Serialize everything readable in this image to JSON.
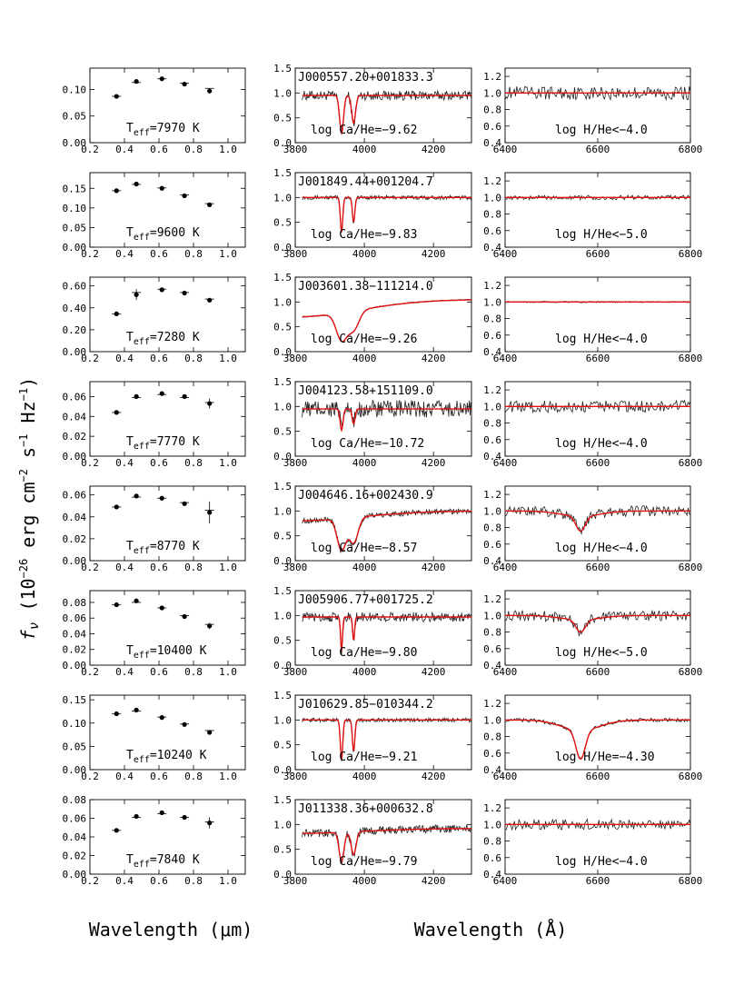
{
  "figure": {
    "ylabel_f": "f",
    "ylabel_nu": "ν",
    "ylabel_rest": " (10",
    "ylabel_exp1": "−26",
    "ylabel_unit1": " erg cm",
    "ylabel_exp2": "−2",
    "ylabel_unit2": " s",
    "ylabel_exp3": "−1",
    "ylabel_unit3": " Hz",
    "ylabel_exp4": "−1",
    "ylabel_close": ")",
    "xlabel_left": "Wavelength (μm)",
    "xlabel_right": "Wavelength (Å)"
  },
  "axes": {
    "photometry": {
      "xlim": [
        0.2,
        1.1
      ],
      "xticks": [
        "0.2",
        "0.4",
        "0.6",
        "0.8",
        "1.0"
      ],
      "xtick_values": [
        0.2,
        0.4,
        0.6,
        0.8,
        1.0
      ]
    },
    "calcium": {
      "xlim": [
        3800,
        4310
      ],
      "xticks": [
        "3800",
        "4000",
        "4200"
      ],
      "xtick_values": [
        3800,
        4000,
        4200
      ],
      "ylim": [
        0.0,
        1.5
      ],
      "yticks": [
        "0.0",
        "0.5",
        "1.0",
        "1.5"
      ],
      "ytick_values": [
        0.0,
        0.5,
        1.0,
        1.5
      ]
    },
    "halpha": {
      "xlim": [
        6400,
        6800
      ],
      "xticks": [
        "6400",
        "6600",
        "6800"
      ],
      "xtick_values": [
        6400,
        6600,
        6800
      ],
      "ylim": [
        0.4,
        1.3
      ],
      "yticks": [
        "0.4",
        "0.6",
        "0.8",
        "1.0",
        "1.2"
      ],
      "ytick_values": [
        0.4,
        0.6,
        0.8,
        1.0,
        1.2
      ]
    }
  },
  "chart_data": [
    {
      "type": "scatter",
      "name": "J000557.20+001833.3",
      "teff_label": "=7970 K",
      "phot": {
        "ylim": [
          0.0,
          0.14
        ],
        "yticks": [
          "0.00",
          "0.05",
          "0.10"
        ],
        "ytick_values": [
          0.0,
          0.05,
          0.1
        ],
        "x": [
          0.354,
          0.469,
          0.617,
          0.748,
          0.893
        ],
        "y": [
          0.087,
          0.115,
          0.12,
          0.11,
          0.097
        ],
        "err": [
          0.003,
          0.002,
          0.002,
          0.003,
          0.005
        ],
        "model": [
          0.087,
          0.113,
          0.12,
          0.112,
          0.102
        ]
      },
      "ca": {
        "label": "log Ca/He=−9.62",
        "continuum": 0.95,
        "depth1": 0.8,
        "depth2": 0.65,
        "width": 8,
        "noise": 0.12,
        "cont_shape": 0.0
      },
      "h": {
        "label": "log H/He<−4.0",
        "depth": 0.0,
        "noise": 0.09
      }
    },
    {
      "type": "scatter",
      "name": "J001849.44+001204.7",
      "teff_label": "=9600 K",
      "phot": {
        "ylim": [
          0.0,
          0.19
        ],
        "yticks": [
          "0.00",
          "0.05",
          "0.10",
          "0.15"
        ],
        "ytick_values": [
          0.0,
          0.05,
          0.1,
          0.15
        ],
        "x": [
          0.354,
          0.469,
          0.617,
          0.748,
          0.893
        ],
        "y": [
          0.144,
          0.161,
          0.15,
          0.131,
          0.108
        ],
        "err": [
          0.004,
          0.003,
          0.003,
          0.003,
          0.004
        ],
        "model": [
          0.144,
          0.16,
          0.151,
          0.133,
          0.111
        ]
      },
      "ca": {
        "label": "log Ca/He=−9.83",
        "continuum": 1.0,
        "depth1": 0.7,
        "depth2": 0.55,
        "width": 5,
        "noise": 0.05,
        "cont_shape": 0.0
      },
      "h": {
        "label": "log H/He<−5.0",
        "depth": 0.0,
        "noise": 0.03
      }
    },
    {
      "type": "scatter",
      "name": "J003601.38−111214.0",
      "teff_label": "=7280 K",
      "phot": {
        "ylim": [
          0.0,
          0.68
        ],
        "yticks": [
          "0.00",
          "0.20",
          "0.40",
          "0.60"
        ],
        "ytick_values": [
          0.0,
          0.2,
          0.4,
          0.6
        ],
        "x": [
          0.354,
          0.469,
          0.617,
          0.748,
          0.893
        ],
        "y": [
          0.345,
          0.52,
          0.565,
          0.535,
          0.47
        ],
        "err": [
          0.01,
          0.05,
          0.02,
          0.015,
          0.02
        ],
        "model": [
          0.345,
          0.54,
          0.57,
          0.54,
          0.48
        ]
      },
      "ca": {
        "label": "log Ca/He=−9.26",
        "continuum": 1.05,
        "depth1": 0.7,
        "depth2": 0.5,
        "width": 22,
        "noise": 0.015,
        "cont_shape": 0.35
      },
      "h": {
        "label": "log H/He<−4.0",
        "depth": 0.0,
        "noise": 0.01
      }
    },
    {
      "type": "scatter",
      "name": "J004123.58+151109.0",
      "teff_label": "=7770 K",
      "phot": {
        "ylim": [
          0.0,
          0.075
        ],
        "yticks": [
          "0.00",
          "0.02",
          "0.04",
          "0.06"
        ],
        "ytick_values": [
          0.0,
          0.02,
          0.04,
          0.06
        ],
        "x": [
          0.354,
          0.469,
          0.617,
          0.748,
          0.893
        ],
        "y": [
          0.044,
          0.06,
          0.063,
          0.06,
          0.053
        ],
        "err": [
          0.002,
          0.001,
          0.0015,
          0.002,
          0.005
        ],
        "model": [
          0.044,
          0.059,
          0.062,
          0.059,
          0.054
        ]
      },
      "ca": {
        "label": "log Ca/He=−10.72",
        "continuum": 0.95,
        "depth1": 0.45,
        "depth2": 0.35,
        "width": 6,
        "noise": 0.22,
        "cont_shape": 0.0
      },
      "h": {
        "label": "log H/He<−4.0",
        "depth": 0.0,
        "noise": 0.08
      }
    },
    {
      "type": "scatter",
      "name": "J004646.16+002430.9",
      "teff_label": "=8770 K",
      "phot": {
        "ylim": [
          0.0,
          0.068
        ],
        "yticks": [
          "0.00",
          "0.02",
          "0.04",
          "0.06"
        ],
        "ytick_values": [
          0.0,
          0.02,
          0.04,
          0.06
        ],
        "x": [
          0.354,
          0.469,
          0.617,
          0.748,
          0.893
        ],
        "y": [
          0.049,
          0.059,
          0.057,
          0.052,
          0.044
        ],
        "err": [
          0.0015,
          0.001,
          0.0015,
          0.002,
          0.01
        ],
        "model": [
          0.049,
          0.058,
          0.057,
          0.053,
          0.046
        ]
      },
      "ca": {
        "label": "log Ca/He=−8.57",
        "continuum": 1.0,
        "depth1": 0.75,
        "depth2": 0.65,
        "width": 18,
        "noise": 0.07,
        "cont_shape": 0.2
      },
      "h": {
        "label": "log H/He<−4.0",
        "depth": 0.18,
        "noise": 0.07
      }
    },
    {
      "type": "scatter",
      "name": "J005906.77+001725.2",
      "teff_label": "=10400 K",
      "phot": {
        "ylim": [
          0.0,
          0.095
        ],
        "yticks": [
          "0.00",
          "0.02",
          "0.04",
          "0.06",
          "0.08"
        ],
        "ytick_values": [
          0.0,
          0.02,
          0.04,
          0.06,
          0.08
        ],
        "x": [
          0.354,
          0.469,
          0.617,
          0.748,
          0.893
        ],
        "y": [
          0.077,
          0.082,
          0.073,
          0.062,
          0.05
        ],
        "err": [
          0.002,
          0.003,
          0.002,
          0.002,
          0.004
        ],
        "model": [
          0.077,
          0.08,
          0.073,
          0.063,
          0.052
        ]
      },
      "ca": {
        "label": "log Ca/He=−9.80",
        "continuum": 0.97,
        "depth1": 0.7,
        "depth2": 0.55,
        "width": 4,
        "noise": 0.12,
        "cont_shape": 0.0
      },
      "h": {
        "label": "log H/He<−5.0",
        "depth": 0.15,
        "noise": 0.07
      }
    },
    {
      "type": "scatter",
      "name": "J010629.85−010344.2",
      "teff_label": "=10240 K",
      "phot": {
        "ylim": [
          0.0,
          0.16
        ],
        "yticks": [
          "0.00",
          "0.05",
          "0.10",
          "0.15"
        ],
        "ytick_values": [
          0.0,
          0.05,
          0.1,
          0.15
        ],
        "x": [
          0.354,
          0.469,
          0.617,
          0.748,
          0.893
        ],
        "y": [
          0.12,
          0.128,
          0.112,
          0.097,
          0.08
        ],
        "err": [
          0.004,
          0.004,
          0.003,
          0.003,
          0.005
        ],
        "model": [
          0.12,
          0.126,
          0.113,
          0.098,
          0.084
        ]
      },
      "ca": {
        "label": "log Ca/He=−9.21",
        "continuum": 1.0,
        "depth1": 0.8,
        "depth2": 0.7,
        "width": 5,
        "noise": 0.05,
        "cont_shape": 0.0
      },
      "h": {
        "label": "log H/He=−4.30",
        "depth": 0.35,
        "noise": 0.025
      }
    },
    {
      "type": "scatter",
      "name": "J011338.36+000632.8",
      "teff_label": "=7840 K",
      "phot": {
        "ylim": [
          0.0,
          0.08
        ],
        "yticks": [
          "0.00",
          "0.02",
          "0.04",
          "0.06",
          "0.08"
        ],
        "ytick_values": [
          0.0,
          0.02,
          0.04,
          0.06,
          0.08
        ],
        "x": [
          0.354,
          0.469,
          0.617,
          0.748,
          0.893
        ],
        "y": [
          0.047,
          0.062,
          0.066,
          0.061,
          0.055
        ],
        "err": [
          0.0015,
          0.001,
          0.0015,
          0.002,
          0.006
        ],
        "model": [
          0.047,
          0.061,
          0.065,
          0.061,
          0.056
        ]
      },
      "ca": {
        "label": "log Ca/He=−9.79",
        "continuum": 0.92,
        "depth1": 0.7,
        "depth2": 0.6,
        "width": 10,
        "noise": 0.1,
        "cont_shape": 0.1
      },
      "h": {
        "label": "log H/He<−4.0",
        "depth": 0.0,
        "noise": 0.07
      }
    }
  ]
}
